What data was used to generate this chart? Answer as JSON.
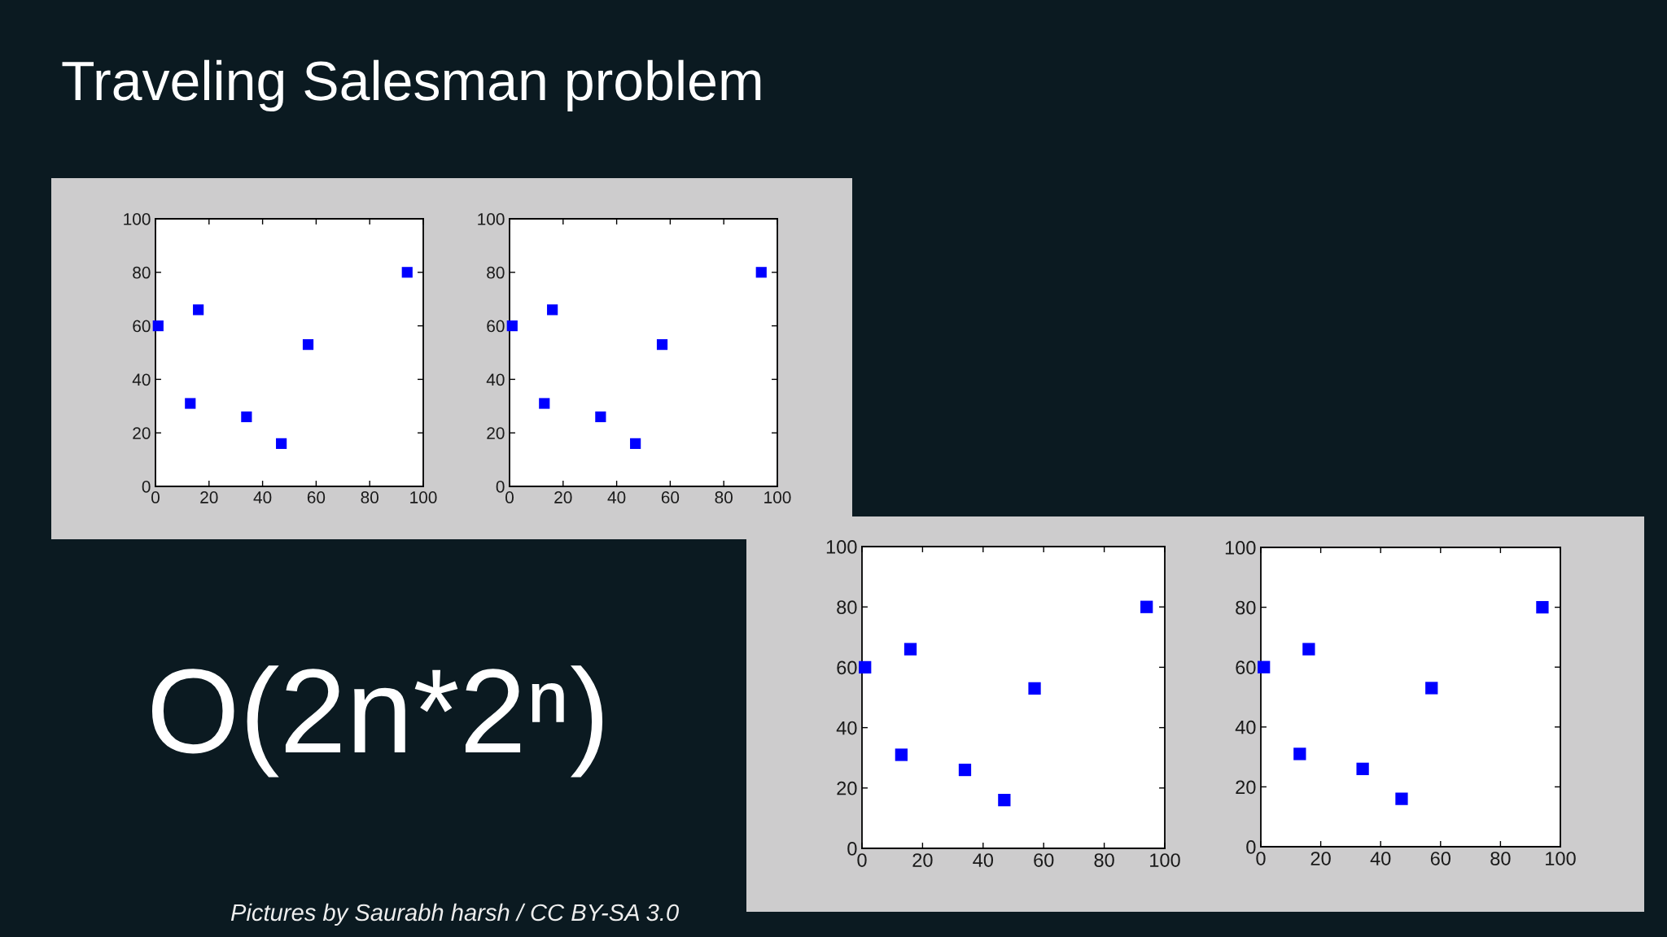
{
  "chart_data": [
    {
      "type": "other",
      "title": "Traveling Salesman problem",
      "annotations": [
        "O(2n*2ⁿ)",
        "Pictures by Saurabh harsh / CC BY-SA 3.0"
      ]
    },
    {
      "type": "scatter",
      "x": [
        1,
        16,
        13,
        34,
        47,
        57,
        94
      ],
      "values": [
        60,
        66,
        31,
        26,
        16,
        53,
        80
      ],
      "color": "#0000ff",
      "marker": "square",
      "xlim": [
        0,
        100
      ],
      "ylim": [
        0,
        100
      ],
      "xticks": [
        0,
        20,
        40,
        60,
        80,
        100
      ],
      "yticks": [
        0,
        20,
        40,
        60,
        80,
        100
      ]
    },
    {
      "type": "scatter",
      "x": [
        1,
        16,
        13,
        34,
        47,
        57,
        94
      ],
      "values": [
        60,
        66,
        31,
        26,
        16,
        53,
        80
      ],
      "color": "#0000ff",
      "marker": "square",
      "xlim": [
        0,
        100
      ],
      "ylim": [
        0,
        100
      ],
      "xticks": [
        0,
        20,
        40,
        60,
        80,
        100
      ],
      "yticks": [
        0,
        20,
        40,
        60,
        80,
        100
      ]
    },
    {
      "type": "scatter",
      "x": [
        1,
        16,
        13,
        34,
        47,
        57,
        94
      ],
      "values": [
        60,
        66,
        31,
        26,
        16,
        53,
        80
      ],
      "color": "#0000ff",
      "marker": "square",
      "xlim": [
        0,
        100
      ],
      "ylim": [
        0,
        100
      ],
      "xticks": [
        0,
        20,
        40,
        60,
        80,
        100
      ],
      "yticks": [
        0,
        20,
        40,
        60,
        80,
        100
      ]
    },
    {
      "type": "scatter",
      "x": [
        1,
        16,
        13,
        34,
        47,
        57,
        94
      ],
      "values": [
        60,
        66,
        31,
        26,
        16,
        53,
        80
      ],
      "color": "#0000ff",
      "marker": "square",
      "xlim": [
        0,
        100
      ],
      "ylim": [
        0,
        100
      ],
      "xticks": [
        0,
        20,
        40,
        60,
        80,
        100
      ],
      "yticks": [
        0,
        20,
        40,
        60,
        80,
        100
      ]
    }
  ]
}
